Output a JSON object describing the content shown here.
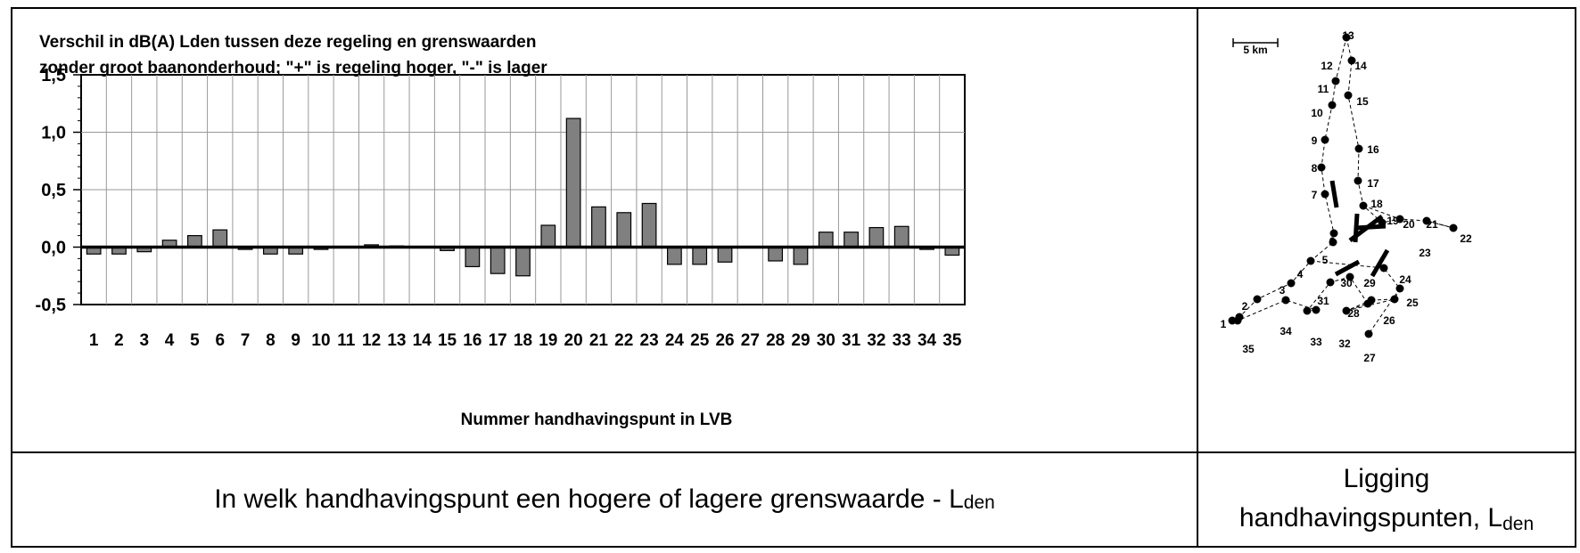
{
  "chart_data": {
    "type": "bar",
    "title_line1": "Verschil in dB(A) Lden tussen deze regeling en grenswaarden",
    "title_line2": "zonder groot baanonderhoud; \"+\" is regeling hoger, \"-\" is lager",
    "xlabel": "Nummer handhavingspunt in LVB",
    "ylabel": "",
    "ylim": [
      -0.5,
      1.5
    ],
    "yticks": [
      "1,5",
      "1,0",
      "0,5",
      "0,0",
      "-0,5"
    ],
    "ytick_values": [
      1.5,
      1.0,
      0.5,
      0.0,
      -0.5
    ],
    "grid": true,
    "categories": [
      "1",
      "2",
      "3",
      "4",
      "5",
      "6",
      "7",
      "8",
      "9",
      "10",
      "11",
      "12",
      "13",
      "14",
      "15",
      "16",
      "17",
      "18",
      "19",
      "20",
      "21",
      "22",
      "23",
      "24",
      "25",
      "26",
      "27",
      "28",
      "29",
      "30",
      "31",
      "32",
      "33",
      "34",
      "35"
    ],
    "values": [
      -0.06,
      -0.06,
      -0.04,
      0.06,
      0.1,
      0.15,
      -0.02,
      -0.06,
      -0.06,
      -0.02,
      0.0,
      0.02,
      0.01,
      0.0,
      -0.03,
      -0.17,
      -0.23,
      -0.25,
      0.19,
      1.12,
      0.35,
      0.3,
      0.38,
      -0.15,
      -0.15,
      -0.13,
      0.0,
      -0.12,
      -0.15,
      0.13,
      0.13,
      0.17,
      0.18,
      -0.02,
      -0.07
    ],
    "bar_color": "#808080"
  },
  "captions": {
    "left_text": "In welk handhavingspunt een hogere of lagere grenswaarde - L",
    "left_sub": "den",
    "right_line1": "Ligging",
    "right_line2": "handhavingspunten, L",
    "right_sub": "den"
  },
  "map": {
    "scale_label": "5 km",
    "points": [
      "1",
      "2",
      "3",
      "4",
      "5",
      "6",
      "7",
      "8",
      "9",
      "10",
      "11",
      "12",
      "13",
      "14",
      "15",
      "16",
      "17",
      "18",
      "19",
      "20",
      "21",
      "22",
      "23",
      "24",
      "25",
      "26",
      "27",
      "28",
      "29",
      "30",
      "31",
      "32",
      "33",
      "34",
      "35"
    ]
  }
}
